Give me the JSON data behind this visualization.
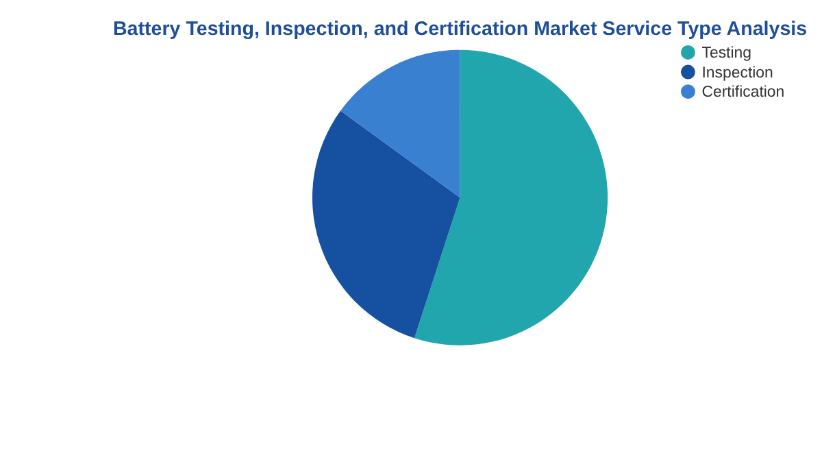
{
  "chart_data": {
    "type": "pie",
    "title": "Battery Testing, Inspection, and Certification Market Service Type Analysis",
    "categories": [
      "Testing",
      "Inspection",
      "Certification"
    ],
    "values": [
      55,
      30,
      15
    ],
    "colors": [
      "#21a6ad",
      "#1650a0",
      "#3a80d0"
    ],
    "legend": "right"
  }
}
